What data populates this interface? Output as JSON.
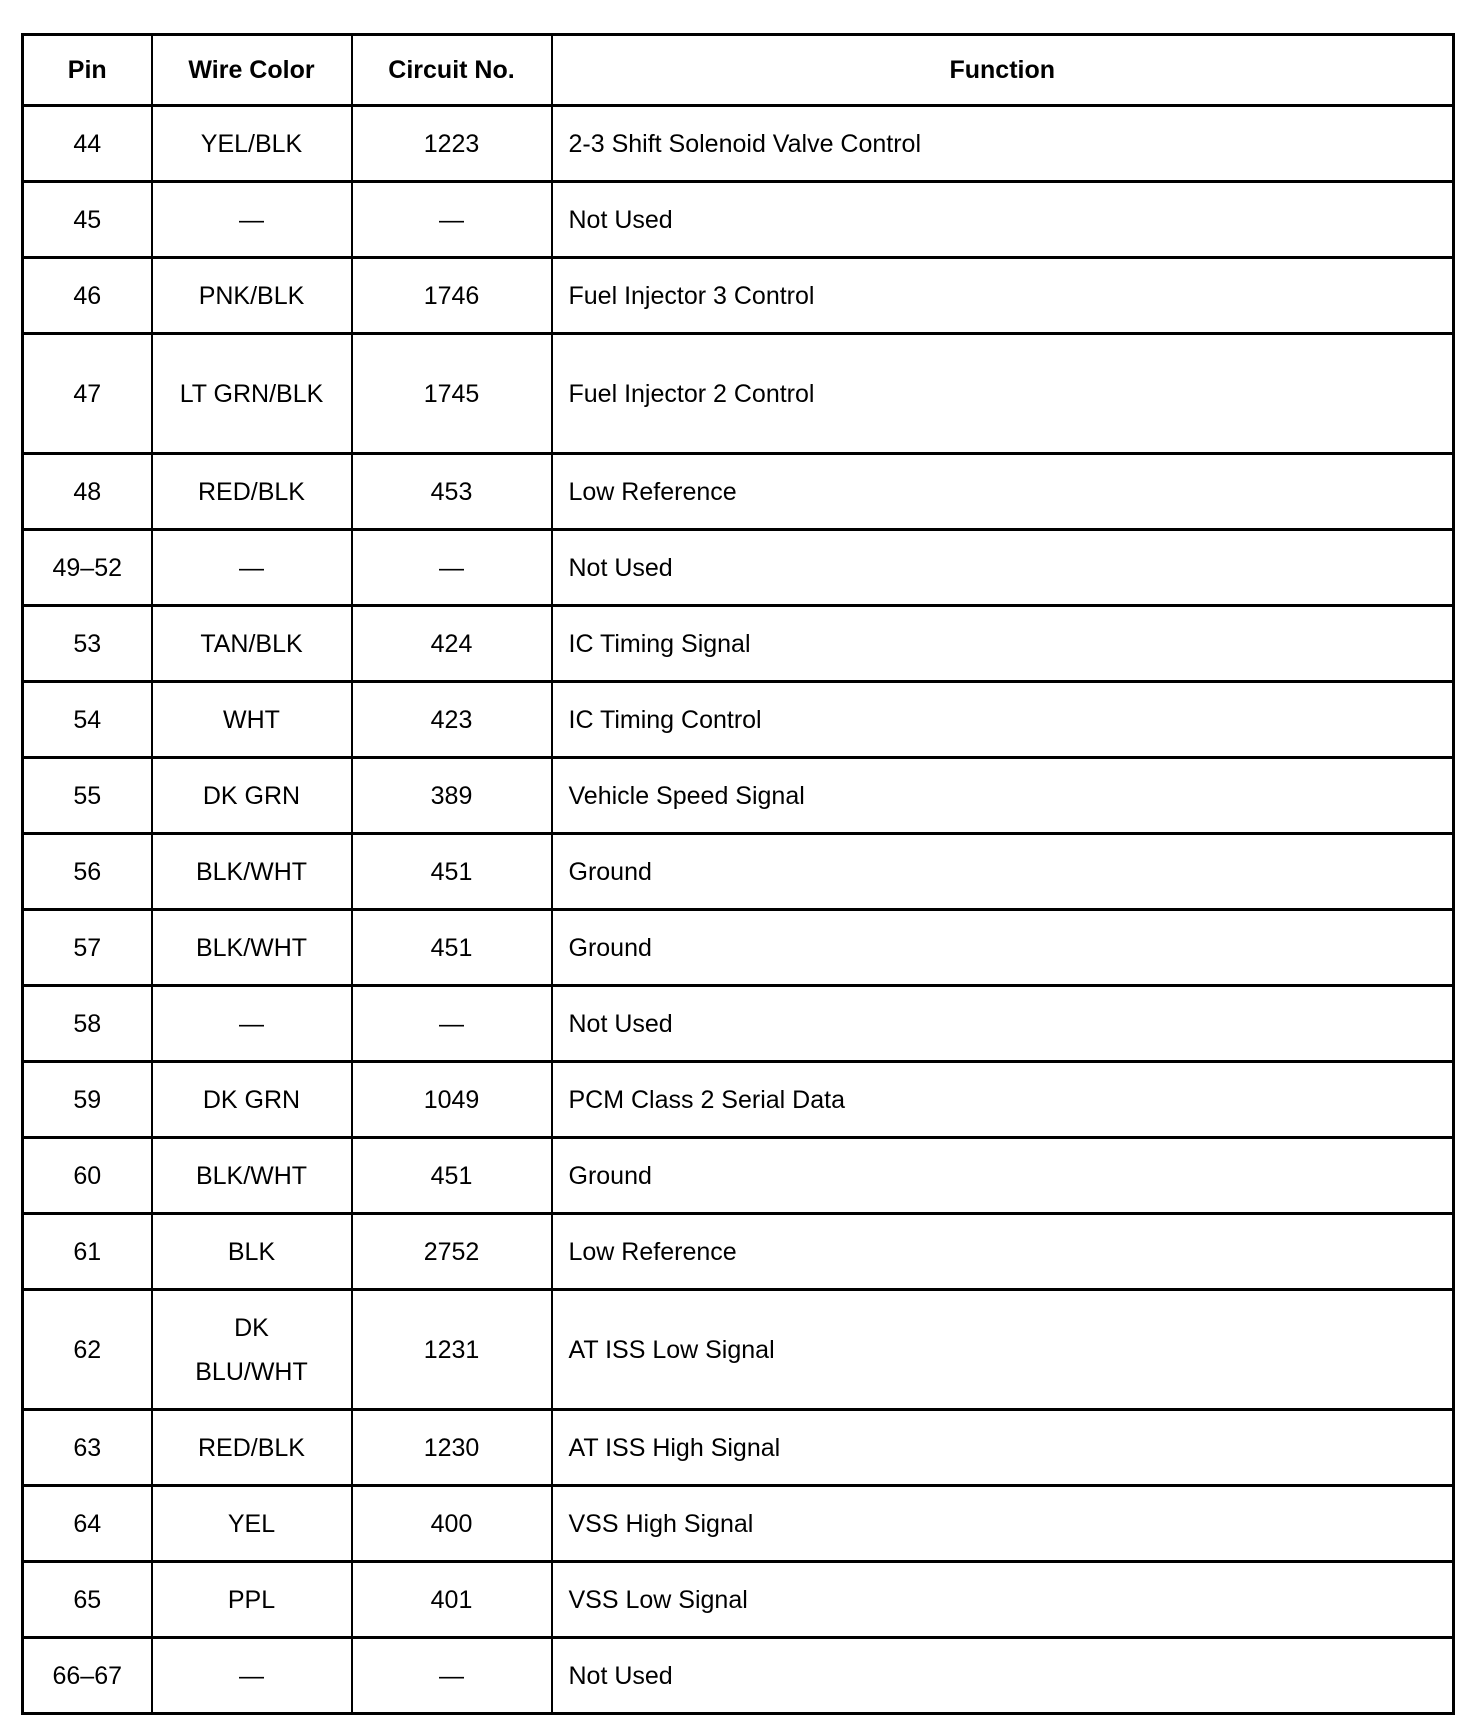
{
  "headers": [
    "Pin",
    "Wire Color",
    "Circuit No.",
    "Function"
  ],
  "rows": [
    {
      "pin": "44",
      "wire": "YEL/BLK",
      "circuit": "1223",
      "function": "2-3 Shift Solenoid Valve Control"
    },
    {
      "pin": "45",
      "wire": "—",
      "circuit": "—",
      "function": "Not Used"
    },
    {
      "pin": "46",
      "wire": "PNK/BLK",
      "circuit": "1746",
      "function": "Fuel Injector 3 Control"
    },
    {
      "pin": "47",
      "wire": "LT GRN/BLK",
      "circuit": "1745",
      "function": "Fuel Injector 2 Control"
    },
    {
      "pin": "48",
      "wire": "RED/BLK",
      "circuit": "453",
      "function": "Low Reference"
    },
    {
      "pin": "49–52",
      "wire": "—",
      "circuit": "—",
      "function": "Not Used"
    },
    {
      "pin": "53",
      "wire": "TAN/BLK",
      "circuit": "424",
      "function": "IC Timing Signal"
    },
    {
      "pin": "54",
      "wire": "WHT",
      "circuit": "423",
      "function": "IC Timing Control"
    },
    {
      "pin": "55",
      "wire": "DK GRN",
      "circuit": "389",
      "function": "Vehicle Speed Signal"
    },
    {
      "pin": "56",
      "wire": "BLK/WHT",
      "circuit": "451",
      "function": "Ground"
    },
    {
      "pin": "57",
      "wire": "BLK/WHT",
      "circuit": "451",
      "function": "Ground"
    },
    {
      "pin": "58",
      "wire": "—",
      "circuit": "—",
      "function": "Not Used"
    },
    {
      "pin": "59",
      "wire": "DK GRN",
      "circuit": "1049",
      "function": "PCM Class 2 Serial Data"
    },
    {
      "pin": "60",
      "wire": "BLK/WHT",
      "circuit": "451",
      "function": "Ground"
    },
    {
      "pin": "61",
      "wire": "BLK",
      "circuit": "2752",
      "function": "Low Reference"
    },
    {
      "pin": "62",
      "wire": "DK BLU/WHT",
      "circuit": "1231",
      "function": "AT ISS Low Signal"
    },
    {
      "pin": "63",
      "wire": "RED/BLK",
      "circuit": "1230",
      "function": "AT ISS High Signal"
    },
    {
      "pin": "64",
      "wire": "YEL",
      "circuit": "400",
      "function": "VSS High Signal"
    },
    {
      "pin": "65",
      "wire": "PPL",
      "circuit": "401",
      "function": "VSS Low Signal"
    },
    {
      "pin": "66–67",
      "wire": "—",
      "circuit": "—",
      "function": "Not Used"
    }
  ]
}
